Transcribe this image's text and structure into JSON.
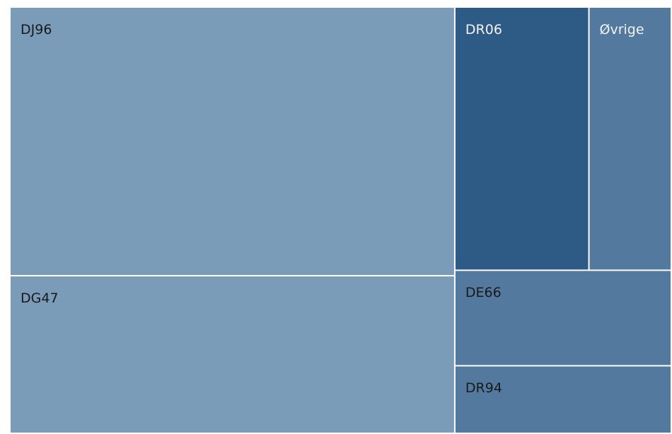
{
  "chart_data": {
    "type": "treemap",
    "title": "",
    "tiles": [
      {
        "label": "DJ96",
        "value": 237,
        "color": "#7a9cb8",
        "text_color": "#1a1a1a"
      },
      {
        "label": "DG47",
        "value": 139,
        "color": "#7a9cb8",
        "text_color": "#1a1a1a"
      },
      {
        "label": "DR06",
        "value": 70,
        "color": "#2e5a86",
        "text_color": "#f2f2f2"
      },
      {
        "label": "Øvrige",
        "value": 43,
        "color": "#54799e",
        "text_color": "#f2f2f2"
      },
      {
        "label": "DE66",
        "value": 41,
        "color": "#54799e",
        "text_color": "#1a1a1a"
      },
      {
        "label": "DR94",
        "value": 29,
        "color": "#54799e",
        "text_color": "#1a1a1a"
      }
    ]
  }
}
